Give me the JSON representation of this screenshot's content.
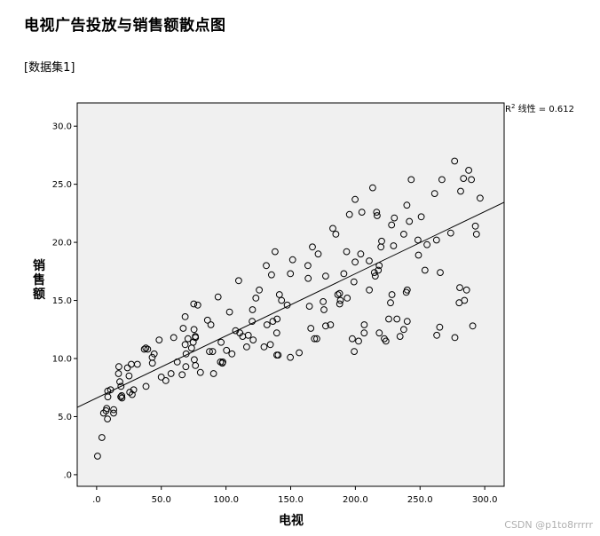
{
  "page": {
    "title": "电视广告投放与销售额散点图",
    "dataset_label": "[数据集1]",
    "watermark": "CSDN @p1to8rrrrr"
  },
  "chart_data": {
    "type": "scatter",
    "xlabel": "电视",
    "ylabel": "销售额",
    "xlim": [
      -15,
      315
    ],
    "ylim": [
      -1,
      32
    ],
    "xticks": [
      ".0",
      "50.0",
      "100.0",
      "150.0",
      "200.0",
      "250.0",
      "300.0"
    ],
    "xtick_values": [
      0,
      50,
      100,
      150,
      200,
      250,
      300
    ],
    "yticks": [
      ".0",
      "5.0",
      "10.0",
      "15.0",
      "20.0",
      "25.0",
      "30.0"
    ],
    "ytick_values": [
      0,
      5,
      10,
      15,
      20,
      25,
      30
    ],
    "grid": false,
    "background": "#f0f0f0",
    "marker": "open-circle",
    "fit_line": {
      "slope": 0.0535,
      "intercept": 6.6
    },
    "r2_label": {
      "prefix": "R",
      "sup": "2",
      "suffix": " 线性 = 0.612"
    },
    "points": [
      [
        0.7,
        1.6
      ],
      [
        4.1,
        3.2
      ],
      [
        5.4,
        5.3
      ],
      [
        7.3,
        5.5
      ],
      [
        7.8,
        5.7
      ],
      [
        8.4,
        4.8
      ],
      [
        8.6,
        7.2
      ],
      [
        8.7,
        6.7
      ],
      [
        10.8,
        7.3
      ],
      [
        13.1,
        5.3
      ],
      [
        13.2,
        5.6
      ],
      [
        16.9,
        8.7
      ],
      [
        17.2,
        9.3
      ],
      [
        17.9,
        8.0
      ],
      [
        18.7,
        6.7
      ],
      [
        18.8,
        7.6
      ],
      [
        19.4,
        6.8
      ],
      [
        19.6,
        6.6
      ],
      [
        23.8,
        9.2
      ],
      [
        25.1,
        8.5
      ],
      [
        25.6,
        7.1
      ],
      [
        26.8,
        9.5
      ],
      [
        27.5,
        6.9
      ],
      [
        28.6,
        7.3
      ],
      [
        31.5,
        9.5
      ],
      [
        36.9,
        10.8
      ],
      [
        38.0,
        10.9
      ],
      [
        38.2,
        7.6
      ],
      [
        39.5,
        10.8
      ],
      [
        43.0,
        10.1
      ],
      [
        43.1,
        9.6
      ],
      [
        44.5,
        10.4
      ],
      [
        48.3,
        11.6
      ],
      [
        50.0,
        8.4
      ],
      [
        53.5,
        8.1
      ],
      [
        57.5,
        8.7
      ],
      [
        59.6,
        11.8
      ],
      [
        62.3,
        9.7
      ],
      [
        66.1,
        8.6
      ],
      [
        66.9,
        12.6
      ],
      [
        68.4,
        11.2
      ],
      [
        68.4,
        13.6
      ],
      [
        69.0,
        9.3
      ],
      [
        69.2,
        10.4
      ],
      [
        70.6,
        11.7
      ],
      [
        73.4,
        10.9
      ],
      [
        74.7,
        11.4
      ],
      [
        75.1,
        14.7
      ],
      [
        75.3,
        12.5
      ],
      [
        75.5,
        9.9
      ],
      [
        76.3,
        11.9
      ],
      [
        76.4,
        9.4
      ],
      [
        76.4,
        11.8
      ],
      [
        78.2,
        14.6
      ],
      [
        80.2,
        8.8
      ],
      [
        85.7,
        13.3
      ],
      [
        87.2,
        10.6
      ],
      [
        88.3,
        12.9
      ],
      [
        89.7,
        10.6
      ],
      [
        90.4,
        8.7
      ],
      [
        93.9,
        15.3
      ],
      [
        95.7,
        9.7
      ],
      [
        96.2,
        11.4
      ],
      [
        97.2,
        9.6
      ],
      [
        97.5,
        9.7
      ],
      [
        100.4,
        10.7
      ],
      [
        102.7,
        14.0
      ],
      [
        104.6,
        10.4
      ],
      [
        107.4,
        12.4
      ],
      [
        109.8,
        16.7
      ],
      [
        110.7,
        12.2
      ],
      [
        112.9,
        11.9
      ],
      [
        116.0,
        11.0
      ],
      [
        117.2,
        12.0
      ],
      [
        120.2,
        13.2
      ],
      [
        120.5,
        14.2
      ],
      [
        121.0,
        11.6
      ],
      [
        123.1,
        15.2
      ],
      [
        125.7,
        15.9
      ],
      [
        129.4,
        11.0
      ],
      [
        131.1,
        18.0
      ],
      [
        131.7,
        12.9
      ],
      [
        134.3,
        11.2
      ],
      [
        135.2,
        17.2
      ],
      [
        136.2,
        13.2
      ],
      [
        137.9,
        19.2
      ],
      [
        139.2,
        12.2
      ],
      [
        139.3,
        10.3
      ],
      [
        139.5,
        13.4
      ],
      [
        140.3,
        10.3
      ],
      [
        141.3,
        15.5
      ],
      [
        142.9,
        15.0
      ],
      [
        147.3,
        14.6
      ],
      [
        149.7,
        10.1
      ],
      [
        149.8,
        17.3
      ],
      [
        151.5,
        18.5
      ],
      [
        156.6,
        10.5
      ],
      [
        163.3,
        18.0
      ],
      [
        163.5,
        16.9
      ],
      [
        164.5,
        14.5
      ],
      [
        165.6,
        12.6
      ],
      [
        166.8,
        19.6
      ],
      [
        168.4,
        11.7
      ],
      [
        170.2,
        11.7
      ],
      [
        171.3,
        19.0
      ],
      [
        175.1,
        14.9
      ],
      [
        175.7,
        14.2
      ],
      [
        177.0,
        17.1
      ],
      [
        177.0,
        12.8
      ],
      [
        180.8,
        12.9
      ],
      [
        182.6,
        21.2
      ],
      [
        184.9,
        20.7
      ],
      [
        186.4,
        15.5
      ],
      [
        187.8,
        15.6
      ],
      [
        187.9,
        14.7
      ],
      [
        188.4,
        15.0
      ],
      [
        191.1,
        17.3
      ],
      [
        193.2,
        19.2
      ],
      [
        193.7,
        15.2
      ],
      [
        195.4,
        22.4
      ],
      [
        197.6,
        11.7
      ],
      [
        198.9,
        16.6
      ],
      [
        199.1,
        10.6
      ],
      [
        199.8,
        23.7
      ],
      [
        199.8,
        18.3
      ],
      [
        202.5,
        11.5
      ],
      [
        204.1,
        19.0
      ],
      [
        205.0,
        22.6
      ],
      [
        206.8,
        12.2
      ],
      [
        206.9,
        12.9
      ],
      [
        210.7,
        18.4
      ],
      [
        210.8,
        15.9
      ],
      [
        213.4,
        24.7
      ],
      [
        214.7,
        17.4
      ],
      [
        215.4,
        17.1
      ],
      [
        216.4,
        22.6
      ],
      [
        216.8,
        22.3
      ],
      [
        217.7,
        17.6
      ],
      [
        218.4,
        18.0
      ],
      [
        218.5,
        12.2
      ],
      [
        219.8,
        19.6
      ],
      [
        220.3,
        20.1
      ],
      [
        222.4,
        11.7
      ],
      [
        223.6,
        11.5
      ],
      [
        225.8,
        13.4
      ],
      [
        227.2,
        14.8
      ],
      [
        228.0,
        21.5
      ],
      [
        228.3,
        15.5
      ],
      [
        229.5,
        19.7
      ],
      [
        230.1,
        22.1
      ],
      [
        232.1,
        13.4
      ],
      [
        234.5,
        11.9
      ],
      [
        237.4,
        12.5
      ],
      [
        237.4,
        20.7
      ],
      [
        239.3,
        15.7
      ],
      [
        239.8,
        23.2
      ],
      [
        240.1,
        15.9
      ],
      [
        240.1,
        13.2
      ],
      [
        241.7,
        21.8
      ],
      [
        243.2,
        25.4
      ],
      [
        248.4,
        20.2
      ],
      [
        248.8,
        18.9
      ],
      [
        250.9,
        22.2
      ],
      [
        253.8,
        17.6
      ],
      [
        255.4,
        19.8
      ],
      [
        261.3,
        24.2
      ],
      [
        262.7,
        20.2
      ],
      [
        262.9,
        12.0
      ],
      [
        265.2,
        12.7
      ],
      [
        265.6,
        17.4
      ],
      [
        266.9,
        25.4
      ],
      [
        273.7,
        20.8
      ],
      [
        276.7,
        27.0
      ],
      [
        276.9,
        11.8
      ],
      [
        280.2,
        14.8
      ],
      [
        280.7,
        16.1
      ],
      [
        281.4,
        24.4
      ],
      [
        283.6,
        25.5
      ],
      [
        284.3,
        15.0
      ],
      [
        286.0,
        15.9
      ],
      [
        287.6,
        26.2
      ],
      [
        289.7,
        25.4
      ],
      [
        290.7,
        12.8
      ],
      [
        292.8,
        21.4
      ],
      [
        293.6,
        20.7
      ],
      [
        296.4,
        23.8
      ]
    ]
  }
}
